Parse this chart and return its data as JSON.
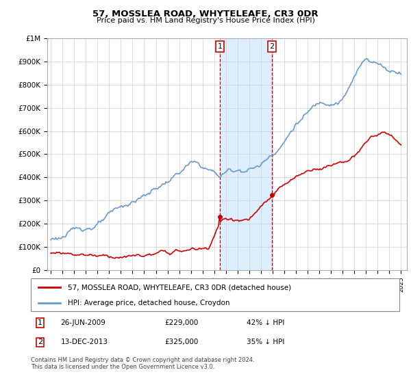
{
  "title": "57, MOSSLEA ROAD, WHYTELEAFE, CR3 0DR",
  "subtitle": "Price paid vs. HM Land Registry's House Price Index (HPI)",
  "legend_property": "57, MOSSLEA ROAD, WHYTELEAFE, CR3 0DR (detached house)",
  "legend_hpi": "HPI: Average price, detached house, Croydon",
  "footnote": "Contains HM Land Registry data © Crown copyright and database right 2024.\nThis data is licensed under the Open Government Licence v3.0.",
  "sale1_date": "26-JUN-2009",
  "sale1_price": "£229,000",
  "sale1_hpi": "42% ↓ HPI",
  "sale2_date": "13-DEC-2013",
  "sale2_price": "£325,000",
  "sale2_hpi": "35% ↓ HPI",
  "property_color": "#cc0000",
  "hpi_color": "#6699cc",
  "shade_color": "#ddeeff",
  "dashed_color": "#cc0000",
  "ylim": [
    0,
    1000000
  ],
  "yticks": [
    0,
    100000,
    200000,
    300000,
    400000,
    500000,
    600000,
    700000,
    800000,
    900000,
    1000000
  ],
  "ytick_labels": [
    "£0",
    "£100K",
    "£200K",
    "£300K",
    "£400K",
    "£500K",
    "£600K",
    "£700K",
    "£800K",
    "£900K",
    "£1M"
  ],
  "xlim_start": 1994.7,
  "xlim_end": 2025.5,
  "sale1_x": 2009.48,
  "sale2_x": 2013.95,
  "sale1_y": 229000,
  "sale2_y": 325000
}
